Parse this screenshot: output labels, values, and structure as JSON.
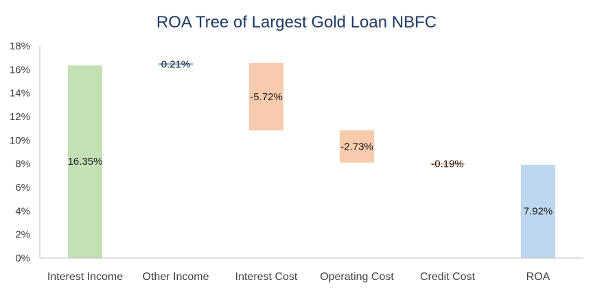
{
  "chart_data": {
    "type": "bar",
    "subtype": "waterfall",
    "title": "ROA Tree of Largest Gold Loan NBFC",
    "categories": [
      "Interest Income",
      "Other Income",
      "Interest Cost",
      "Operating Cost",
      "Credit Cost",
      "ROA"
    ],
    "values": [
      16.35,
      0.21,
      -5.72,
      -2.73,
      -0.19,
      7.92
    ],
    "data_labels": [
      "16.35%",
      "0.21%",
      "-5.72%",
      "-2.73%",
      "-0.19%",
      "7.92%"
    ],
    "ylim": [
      0,
      18
    ],
    "yticks": [
      "0%",
      "2%",
      "4%",
      "6%",
      "8%",
      "10%",
      "12%",
      "14%",
      "16%",
      "18%"
    ],
    "xlabel": "",
    "ylabel": "",
    "grid": false,
    "legend": "none",
    "colors": {
      "total": "#c5e0b4",
      "increase": "#9dc3e6",
      "decrease": "#f8cbad",
      "decrease_line": "#f4b183",
      "increase_line": "#5b9bd5",
      "final": "#bdd7ee",
      "axis": "#bfbfbf"
    }
  }
}
